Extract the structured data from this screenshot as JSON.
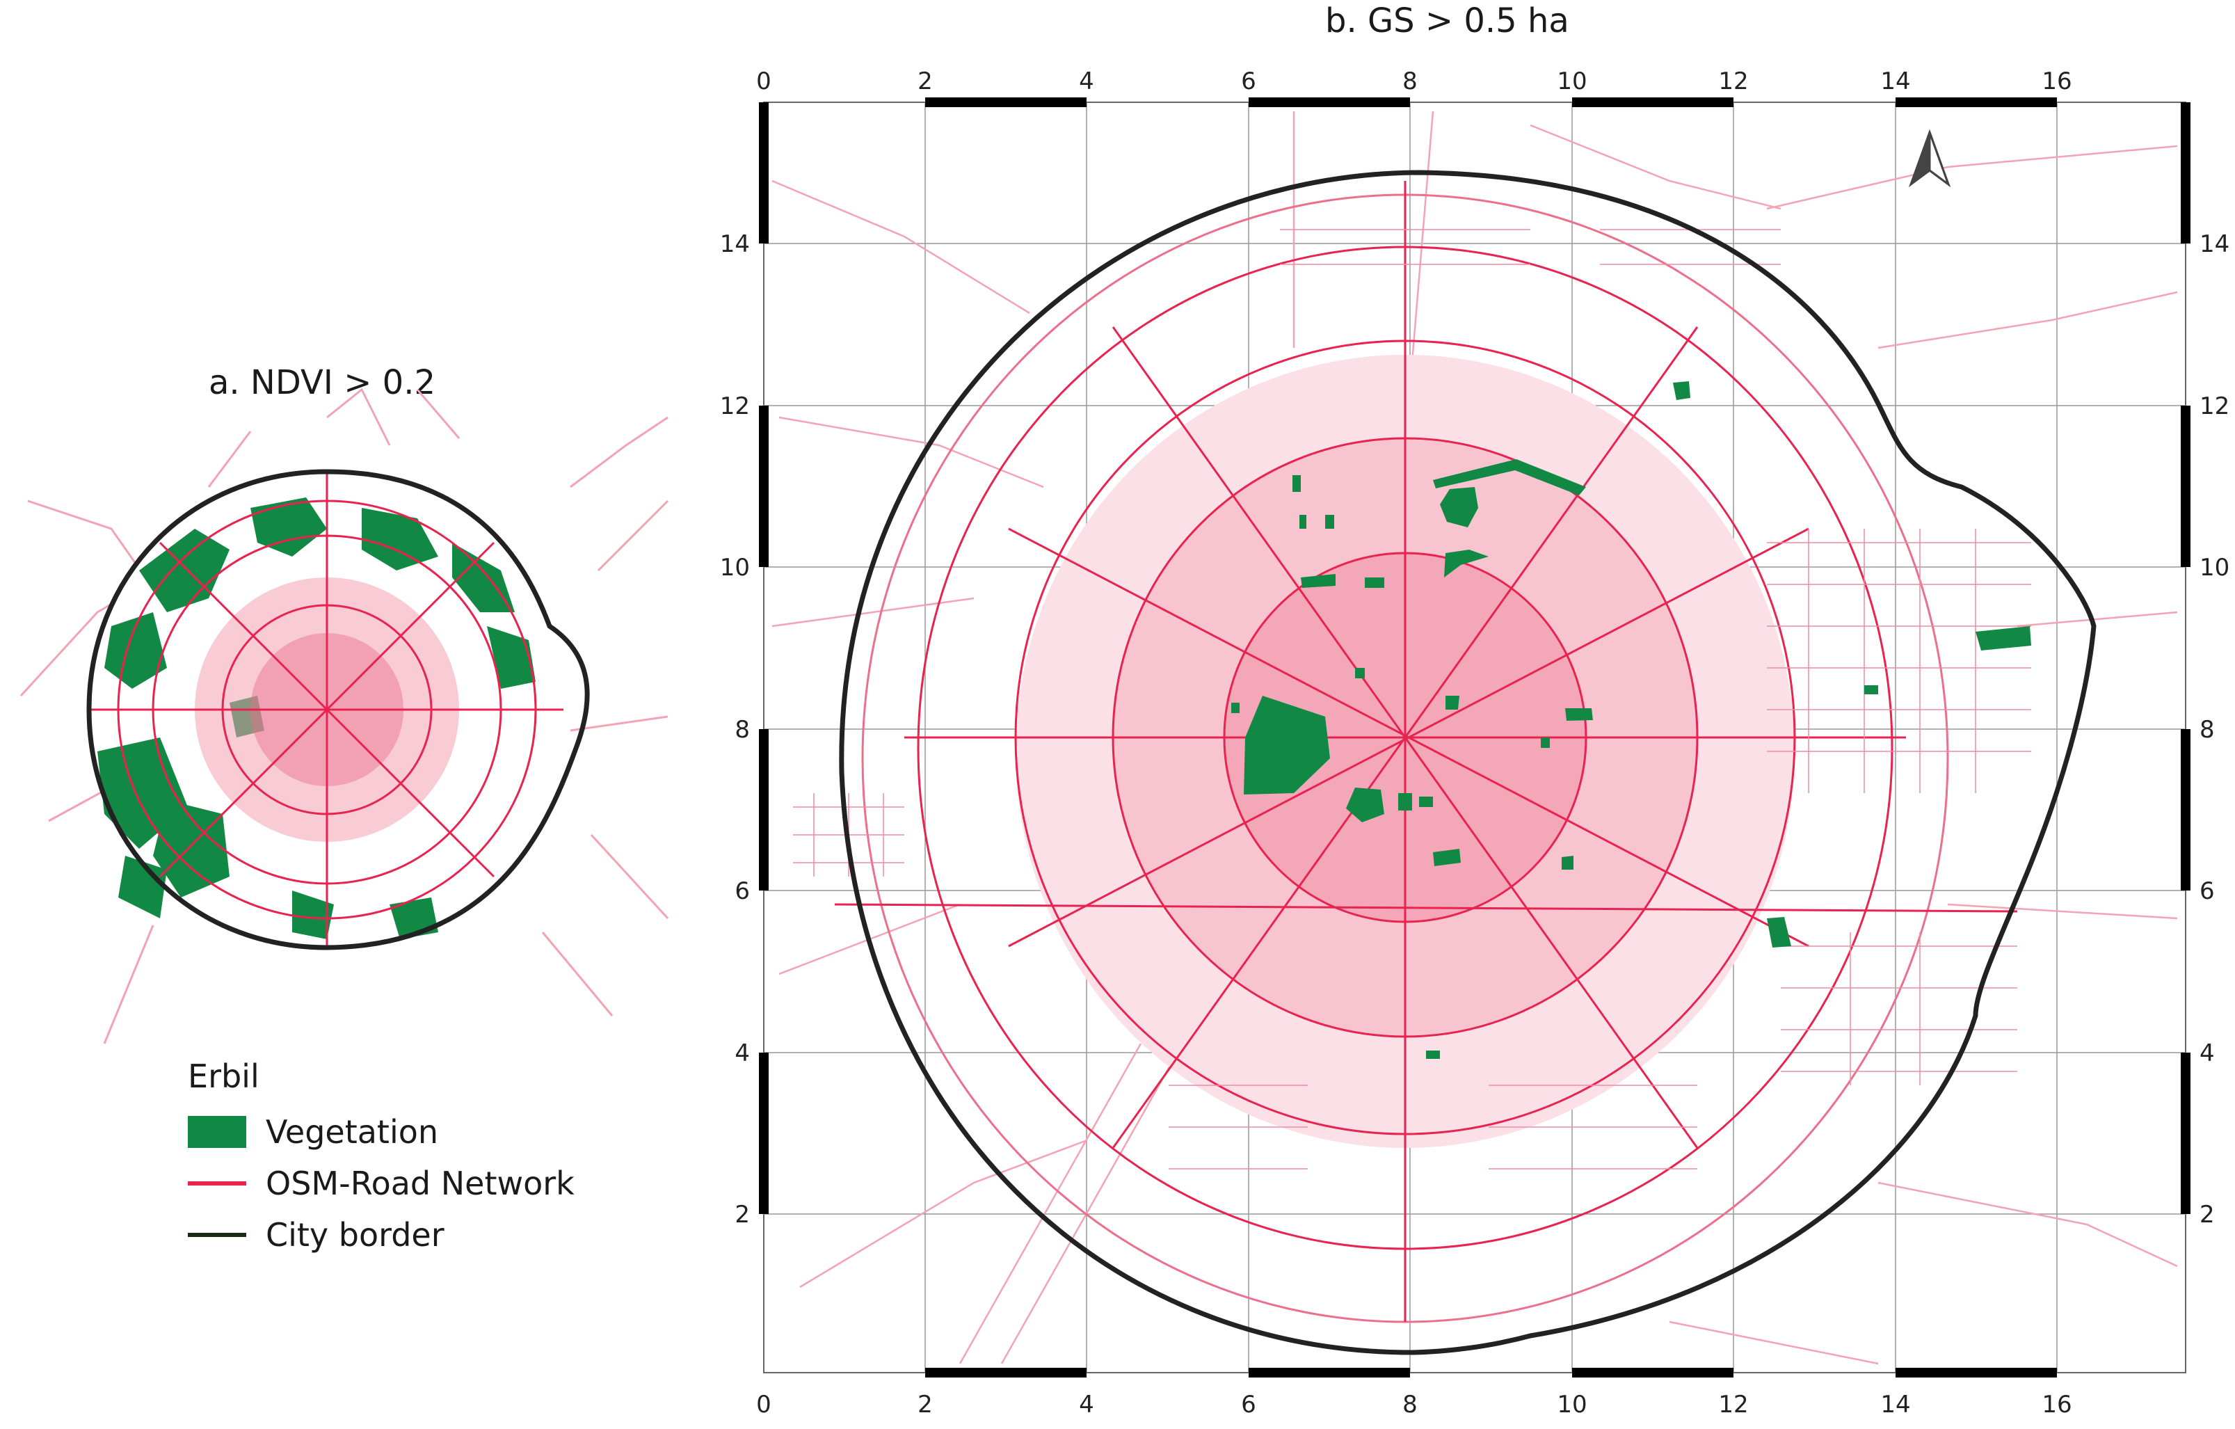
{
  "panels": {
    "a": {
      "title": "a. NDVI > 0.2"
    },
    "b": {
      "title": "b. GS > 0.5 ha"
    }
  },
  "legend": {
    "title": "Erbil",
    "items": [
      {
        "label": "Vegetation",
        "kind": "fill",
        "color": "#118844"
      },
      {
        "label": "OSM-Road Network",
        "kind": "line",
        "color": "#e8234f"
      },
      {
        "label": "City border",
        "kind": "line",
        "color": "#1a2a14"
      }
    ]
  },
  "colors": {
    "road": "#e8234f",
    "road_light": "#f3a3b4",
    "vegetation": "#118844",
    "border": "#222222",
    "grid": "#888888"
  },
  "axes": {
    "x_ticks": [
      "0",
      "2",
      "4",
      "6",
      "8",
      "10",
      "12",
      "14",
      "16"
    ],
    "y_ticks": [
      "2",
      "4",
      "6",
      "8",
      "10",
      "12",
      "14"
    ]
  },
  "north_arrow": {
    "icon": "north-arrow-icon"
  }
}
